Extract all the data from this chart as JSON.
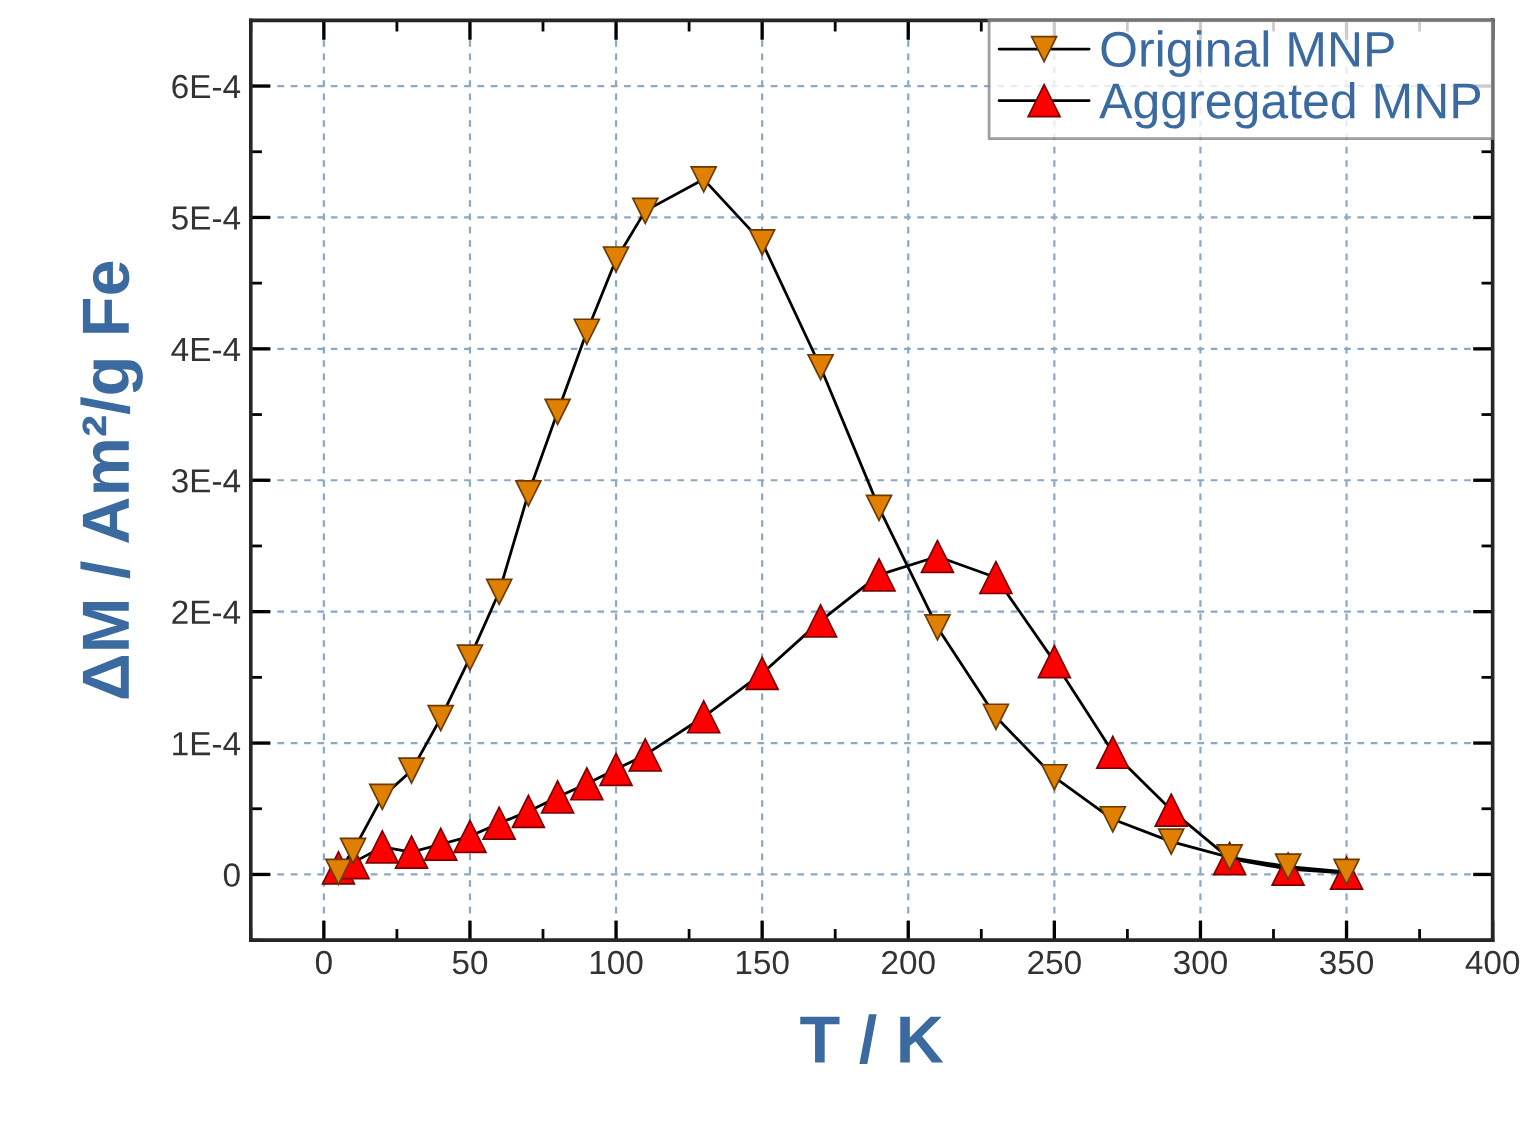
{
  "chart_data": {
    "type": "line",
    "xlabel": "T / K",
    "ylabel": "ΔM / Am²/g Fe",
    "xlim": [
      -25,
      400
    ],
    "xticks": [
      0,
      50,
      100,
      150,
      200,
      250,
      300,
      350,
      400
    ],
    "ylim": [
      -5e-05,
      0.00065
    ],
    "yticks": [
      0,
      {
        "value": 0.0001,
        "label": "1E-4"
      },
      {
        "value": 0.0002,
        "label": "2E-4"
      },
      {
        "value": 0.0003,
        "label": "3E-4"
      },
      {
        "value": 0.0004,
        "label": "4E-4"
      },
      {
        "value": 0.0005,
        "label": "5E-4"
      },
      {
        "value": 0.0006,
        "label": "6E-4"
      }
    ],
    "grid": true,
    "legend": "top right",
    "line_style": "solid",
    "series": [
      {
        "name": "Original MNP",
        "color": "#e08000",
        "marker": "triangle_down",
        "x": [
          5,
          10,
          20,
          30,
          40,
          50,
          60,
          70,
          80,
          90,
          100,
          110,
          130,
          150,
          170,
          190,
          210,
          230,
          250,
          270,
          290,
          310,
          330,
          350
        ],
        "values": [
          2e-06,
          1.8e-05,
          5.9e-05,
          7.9e-05,
          0.000119,
          0.000165,
          0.000215,
          0.00029,
          0.000352,
          0.000413,
          0.000468,
          0.000505,
          0.000529,
          0.000481,
          0.000386,
          0.000279,
          0.000188,
          0.00012,
          7.4e-05,
          4.2e-05,
          2.5e-05,
          1.3e-05,
          6e-06,
          2e-06
        ]
      },
      {
        "name": "Aggregated MNP",
        "color": "#ff0000",
        "marker": "triangle",
        "x": [
          5,
          10,
          20,
          30,
          40,
          50,
          60,
          70,
          80,
          90,
          100,
          110,
          130,
          150,
          170,
          190,
          210,
          230,
          250,
          270,
          290,
          310,
          330,
          350
        ],
        "values": [
          5e-06,
          9e-06,
          2.1e-05,
          1.7e-05,
          2.3e-05,
          2.9e-05,
          3.9e-05,
          4.8e-05,
          5.9e-05,
          6.9e-05,
          8e-05,
          9.1e-05,
          0.00012,
          0.000153,
          0.000193,
          0.000228,
          0.000242,
          0.000226,
          0.000162,
          9.3e-05,
          4.9e-05,
          1.2e-05,
          4e-06,
          1e-06
        ]
      }
    ]
  }
}
